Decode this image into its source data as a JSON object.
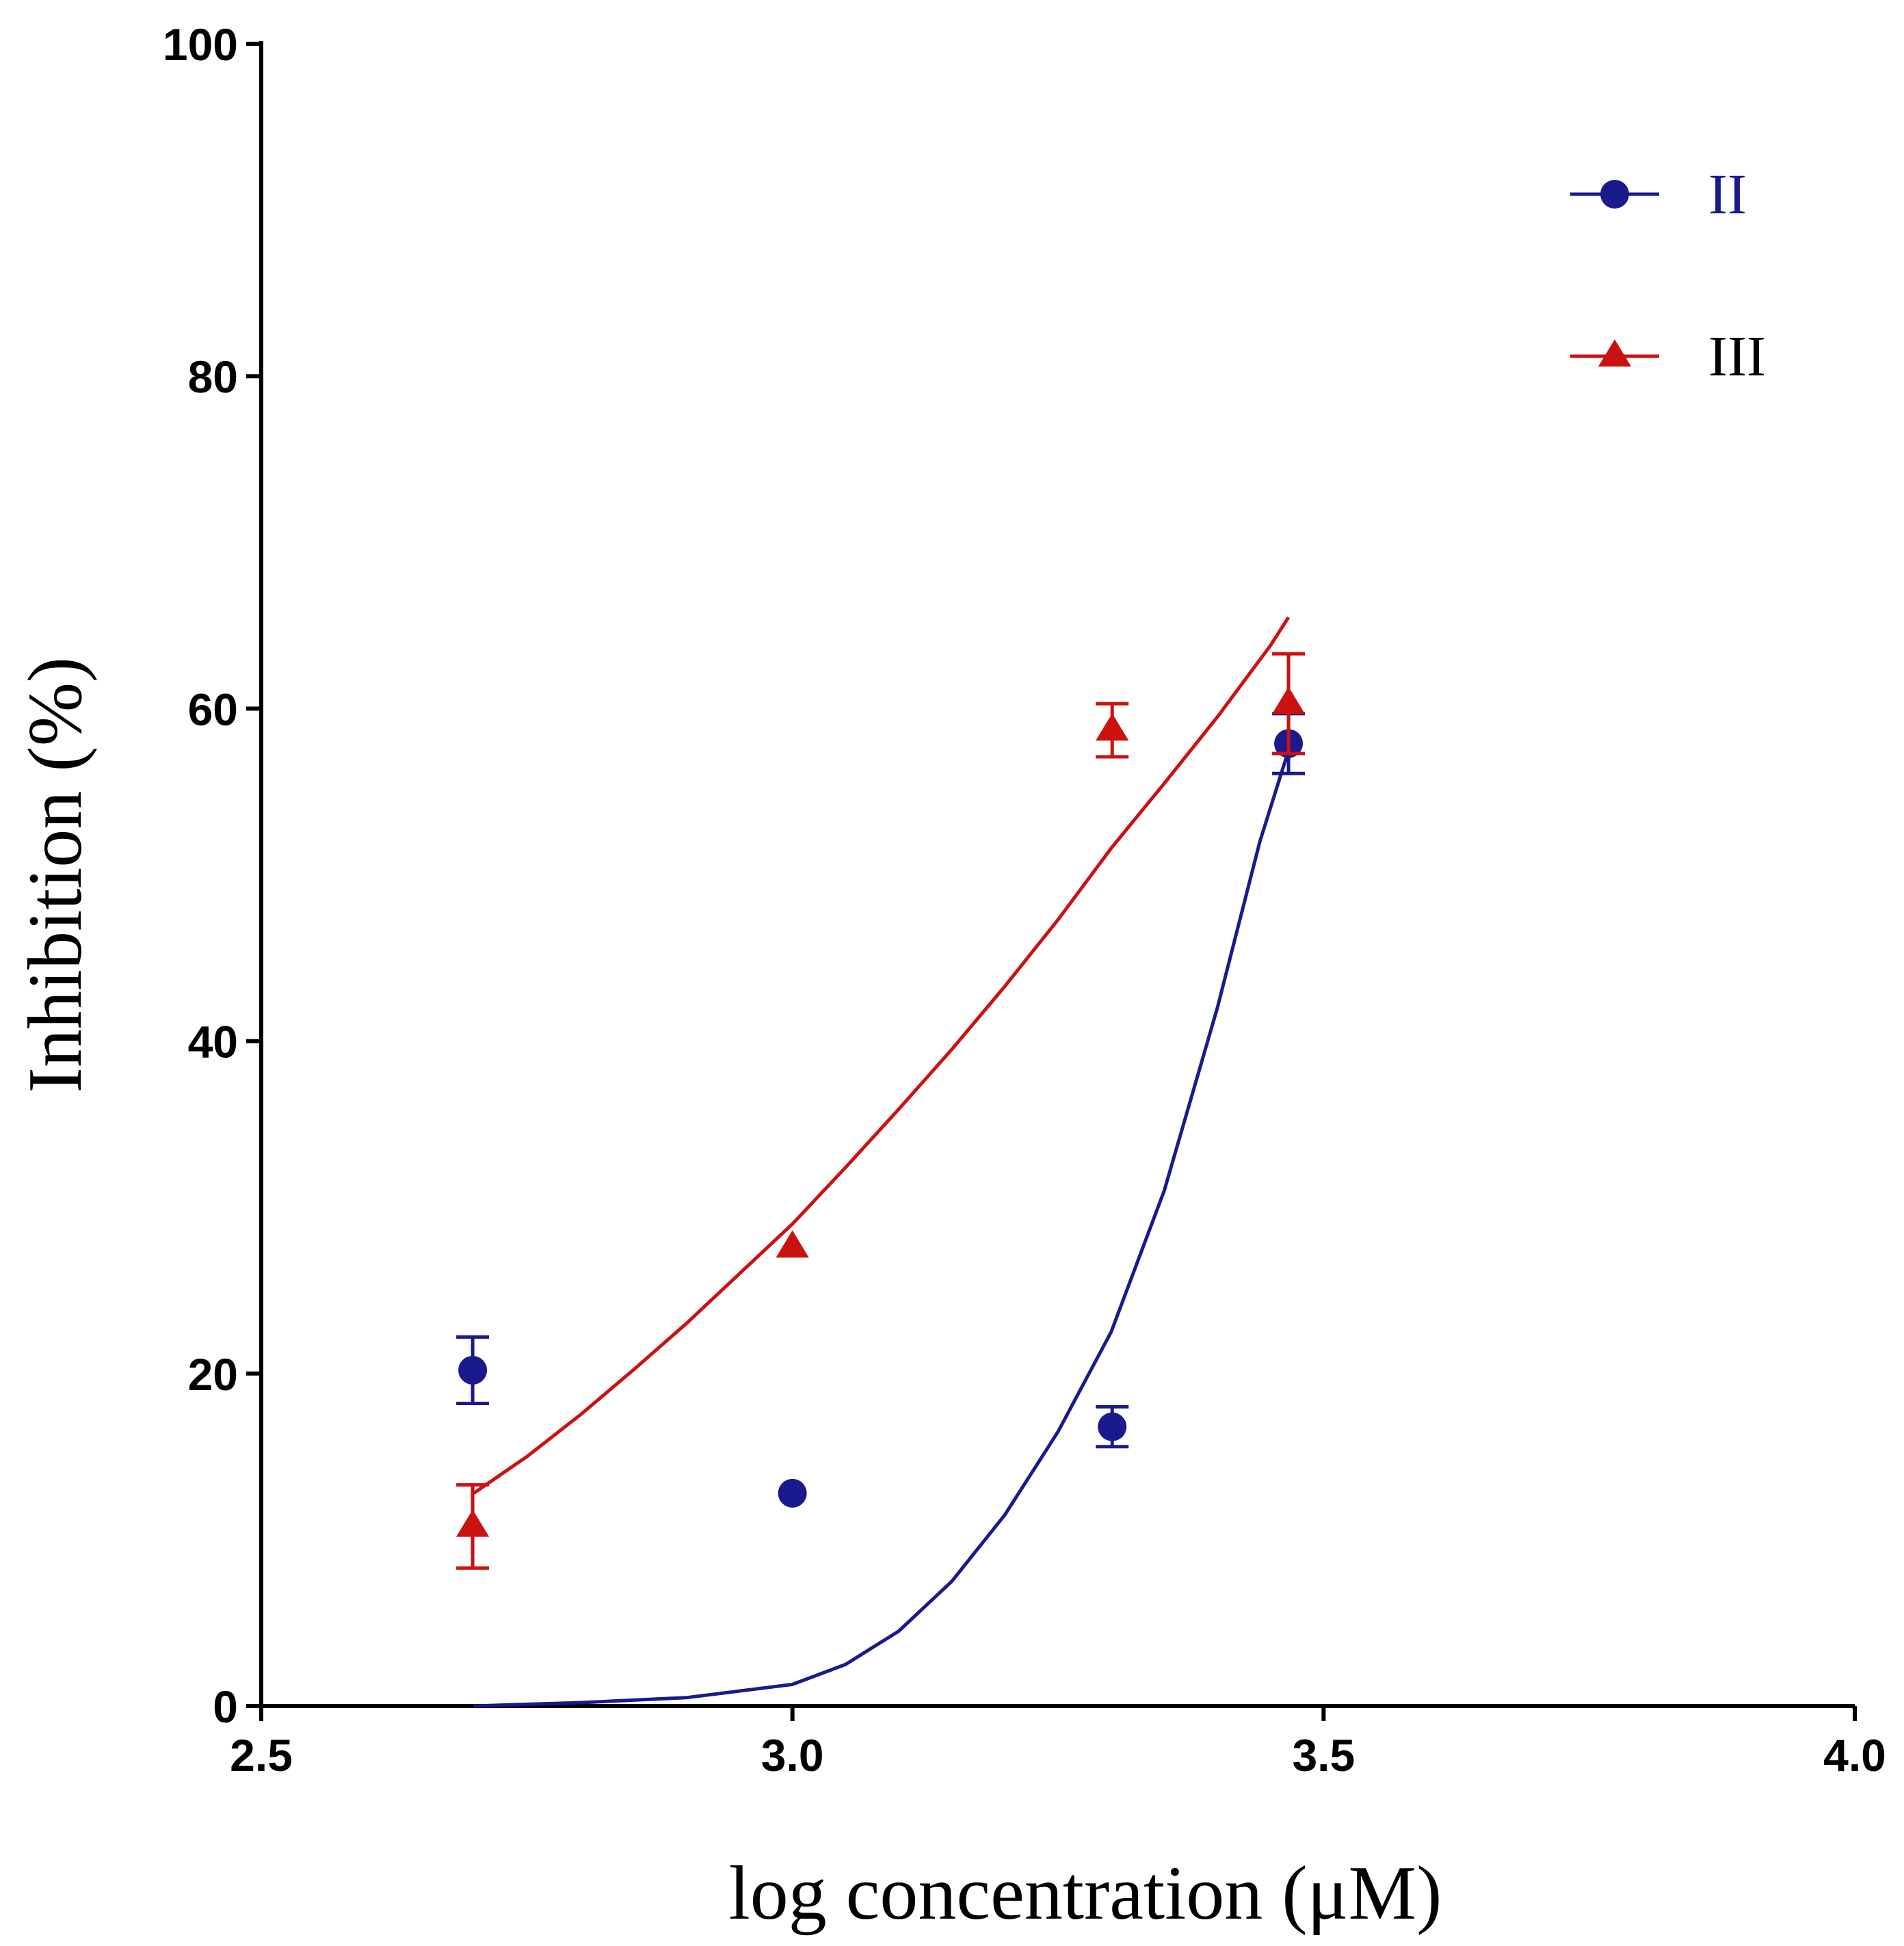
{
  "chart_data": {
    "type": "scatter",
    "xlabel": "log concentration (μM)",
    "ylabel": "Inhibition (%)",
    "xlim": [
      2.5,
      4.0
    ],
    "ylim": [
      0,
      100
    ],
    "xticks": [
      "2.5",
      "3.0",
      "3.5",
      "4.0"
    ],
    "yticks": [
      "0",
      "20",
      "40",
      "60",
      "80",
      "100"
    ],
    "legend_position": "top-right",
    "grid": false,
    "series": [
      {
        "name": "II",
        "color": "#1a1a8c",
        "marker": "circle",
        "x": [
          2.699,
          3.0,
          3.301,
          3.467
        ],
        "y": [
          20.2,
          12.8,
          16.8,
          57.9
        ],
        "err": [
          2.0,
          0.0,
          1.2,
          1.8
        ],
        "fit": {
          "x": [
            2.7,
            2.8,
            2.9,
            3.0,
            3.05,
            3.1,
            3.15,
            3.2,
            3.25,
            3.3,
            3.35,
            3.4,
            3.44,
            3.467
          ],
          "y": [
            0.0,
            0.2,
            0.5,
            1.3,
            2.5,
            4.5,
            7.5,
            11.5,
            16.5,
            22.5,
            31.0,
            42.0,
            52.0,
            57.5
          ]
        }
      },
      {
        "name": "III",
        "color": "#cc1111",
        "marker": "triangle",
        "x": [
          2.699,
          3.0,
          3.301,
          3.467
        ],
        "y": [
          10.8,
          27.6,
          58.7,
          60.3
        ],
        "err": [
          2.5,
          0.0,
          1.6,
          3.0
        ],
        "fit": {
          "x": [
            2.7,
            2.75,
            2.8,
            2.85,
            2.9,
            2.95,
            3.0,
            3.05,
            3.1,
            3.15,
            3.2,
            3.25,
            3.3,
            3.35,
            3.4,
            3.45,
            3.467
          ],
          "y": [
            12.8,
            15.0,
            17.5,
            20.2,
            23.0,
            26.0,
            29.0,
            32.4,
            35.9,
            39.5,
            43.3,
            47.3,
            51.6,
            55.5,
            59.5,
            63.8,
            65.5
          ]
        }
      }
    ]
  }
}
